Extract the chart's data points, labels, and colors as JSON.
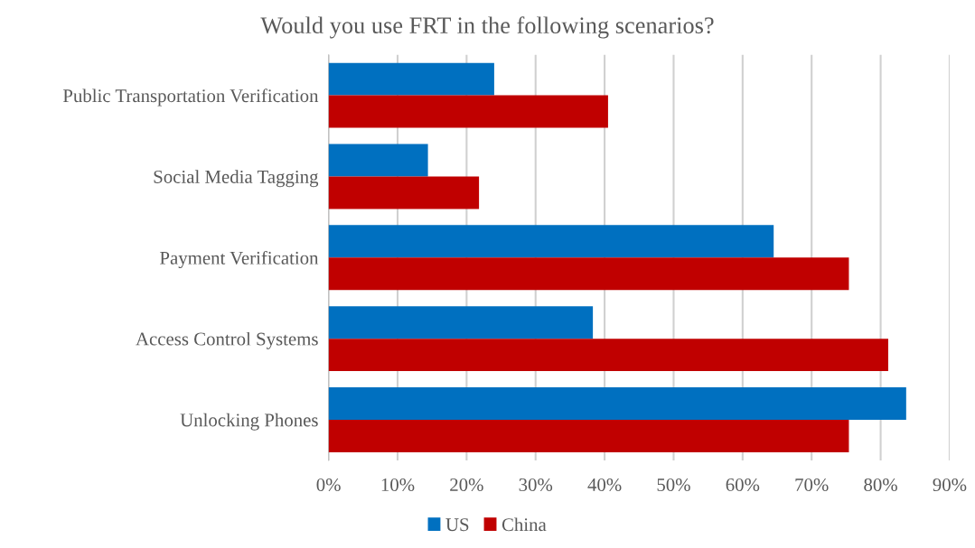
{
  "chart_data": {
    "type": "bar",
    "orientation": "horizontal",
    "title": "Would you use FRT in the following scenarios?",
    "categories": [
      "Public Transportation Verification",
      "Social Media Tagging",
      "Payment Verification",
      "Access Control Systems",
      "Unlocking Phones"
    ],
    "series": [
      {
        "name": "US",
        "color": "#0070c0",
        "values": [
          24,
          14.4,
          64.5,
          38.3,
          83.7
        ]
      },
      {
        "name": "China",
        "color": "#c00000",
        "values": [
          40.5,
          21.8,
          75.4,
          81.1,
          75.4
        ]
      }
    ],
    "xlim": [
      0,
      90
    ],
    "xticks": [
      {
        "value": 0,
        "label": "0%"
      },
      {
        "value": 10,
        "label": "10%"
      },
      {
        "value": 20,
        "label": "20%"
      },
      {
        "value": 30,
        "label": "30%"
      },
      {
        "value": 40,
        "label": "40%"
      },
      {
        "value": 50,
        "label": "50%"
      },
      {
        "value": 60,
        "label": "60%"
      },
      {
        "value": 70,
        "label": "70%"
      },
      {
        "value": 80,
        "label": "80%"
      },
      {
        "value": 90,
        "label": "90%"
      }
    ],
    "grid": "x",
    "legend": "bottom"
  }
}
